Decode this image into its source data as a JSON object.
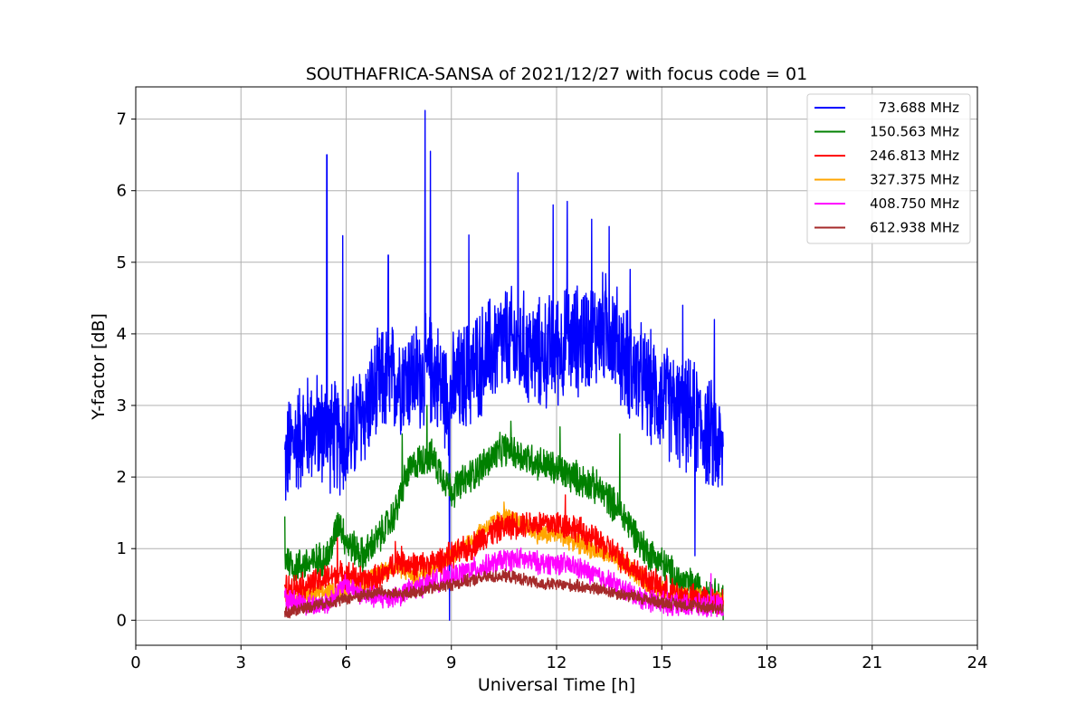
{
  "chart_data": {
    "type": "line",
    "title": "SOUTHAFRICA-SANSA of 2021/12/27 with focus code = 01",
    "xlabel": "Universal Time [h]",
    "ylabel": "Y-factor [dB]",
    "xlim": [
      0,
      24
    ],
    "ylim": [
      -0.35,
      7.45
    ],
    "xticks": [
      0,
      3,
      6,
      9,
      12,
      15,
      18,
      21,
      24
    ],
    "yticks": [
      0,
      1,
      2,
      3,
      4,
      5,
      6,
      7
    ],
    "grid": true,
    "legend_position": "upper right",
    "series": [
      {
        "name": "73.688 MHz",
        "color": "#0000ff",
        "noise": 0.9,
        "spikes": [
          [
            5.45,
            6.5
          ],
          [
            5.9,
            5.37
          ],
          [
            7.2,
            5.1
          ],
          [
            8.25,
            7.12
          ],
          [
            8.4,
            6.55
          ],
          [
            9.5,
            5.38
          ],
          [
            10.9,
            6.25
          ],
          [
            11.9,
            5.8
          ],
          [
            12.3,
            5.85
          ],
          [
            13.0,
            5.6
          ],
          [
            13.5,
            5.5
          ],
          [
            14.1,
            4.9
          ],
          [
            15.6,
            4.4
          ],
          [
            16.5,
            4.2
          ],
          [
            8.95,
            0.0
          ],
          [
            15.95,
            0.9
          ]
        ],
        "x": [
          4.25,
          4.5,
          5.0,
          5.5,
          6.0,
          6.5,
          7.0,
          7.5,
          8.0,
          8.5,
          8.9,
          9.2,
          9.6,
          10.0,
          10.5,
          11.0,
          11.5,
          12.0,
          12.5,
          13.0,
          13.5,
          14.0,
          14.5,
          15.0,
          15.5,
          16.0,
          16.5,
          16.75
        ],
        "y": [
          2.2,
          2.5,
          2.7,
          2.6,
          2.5,
          2.9,
          3.3,
          3.4,
          3.4,
          3.5,
          3.1,
          3.3,
          3.5,
          3.7,
          3.9,
          3.8,
          3.7,
          3.8,
          3.9,
          4.0,
          4.1,
          3.6,
          3.3,
          3.1,
          2.9,
          2.8,
          2.5,
          2.3
        ]
      },
      {
        "name": "150.563 MHz",
        "color": "#008000",
        "noise": 0.28,
        "spikes": [
          [
            4.25,
            1.45
          ],
          [
            7.6,
            2.6
          ],
          [
            8.3,
            3.0
          ],
          [
            10.7,
            2.78
          ],
          [
            12.1,
            2.7
          ],
          [
            13.8,
            2.6
          ],
          [
            16.75,
            0.0
          ]
        ],
        "x": [
          4.25,
          4.5,
          5.0,
          5.5,
          5.8,
          6.0,
          6.5,
          7.0,
          7.4,
          7.7,
          8.0,
          8.4,
          8.8,
          9.0,
          9.5,
          10.0,
          10.5,
          11.0,
          11.5,
          12.0,
          12.5,
          13.0,
          13.5,
          14.0,
          14.5,
          15.0,
          15.5,
          16.0,
          16.5,
          16.75
        ],
        "y": [
          0.9,
          0.75,
          0.8,
          0.9,
          1.4,
          1.1,
          0.9,
          1.2,
          1.5,
          2.0,
          2.2,
          2.3,
          2.0,
          1.8,
          2.0,
          2.2,
          2.4,
          2.3,
          2.2,
          2.1,
          2.0,
          1.9,
          1.7,
          1.4,
          1.0,
          0.8,
          0.55,
          0.45,
          0.35,
          0.3
        ]
      },
      {
        "name": "246.813 MHz",
        "color": "#ff0000",
        "noise": 0.22,
        "spikes": [
          [
            5.75,
            1.15
          ],
          [
            7.4,
            1.1
          ],
          [
            12.25,
            1.75
          ]
        ],
        "x": [
          4.25,
          5.0,
          5.5,
          6.0,
          6.5,
          7.0,
          7.5,
          8.0,
          8.5,
          9.0,
          9.5,
          10.0,
          10.5,
          11.0,
          11.5,
          12.0,
          12.5,
          13.0,
          13.5,
          14.0,
          14.5,
          15.0,
          15.5,
          16.0,
          16.5,
          16.75
        ],
        "y": [
          0.45,
          0.5,
          0.6,
          0.65,
          0.55,
          0.6,
          0.85,
          0.75,
          0.8,
          0.9,
          1.0,
          1.2,
          1.3,
          1.35,
          1.35,
          1.35,
          1.3,
          1.15,
          1.0,
          0.8,
          0.6,
          0.45,
          0.35,
          0.3,
          0.28,
          0.25
        ]
      },
      {
        "name": "327.375 MHz",
        "color": "#ffa500",
        "noise": 0.16,
        "spikes": [
          [
            10.5,
            1.65
          ]
        ],
        "x": [
          4.25,
          5.0,
          5.5,
          6.0,
          6.5,
          7.0,
          7.5,
          8.0,
          8.5,
          9.0,
          9.5,
          10.0,
          10.5,
          11.0,
          11.5,
          12.0,
          12.5,
          13.0,
          13.5,
          14.0,
          14.5,
          15.0,
          15.5,
          16.0,
          16.5,
          16.75
        ],
        "y": [
          0.3,
          0.35,
          0.4,
          0.45,
          0.5,
          0.7,
          0.75,
          0.6,
          0.75,
          0.9,
          1.1,
          1.3,
          1.45,
          1.35,
          1.2,
          1.2,
          1.1,
          1.0,
          0.9,
          0.75,
          0.55,
          0.4,
          0.35,
          0.3,
          0.28,
          0.25
        ]
      },
      {
        "name": "408.750 MHz",
        "color": "#ff00ff",
        "noise": 0.18,
        "spikes": [
          [
            16.4,
            0.65
          ]
        ],
        "x": [
          4.25,
          5.0,
          5.5,
          6.0,
          6.5,
          7.0,
          7.5,
          8.0,
          8.5,
          9.0,
          9.5,
          10.0,
          10.5,
          11.0,
          11.5,
          12.0,
          12.5,
          13.0,
          13.5,
          14.0,
          14.5,
          15.0,
          15.5,
          16.0,
          16.5,
          16.75
        ],
        "y": [
          0.3,
          0.2,
          0.25,
          0.5,
          0.35,
          0.3,
          0.35,
          0.45,
          0.55,
          0.6,
          0.7,
          0.75,
          0.85,
          0.85,
          0.8,
          0.8,
          0.75,
          0.65,
          0.55,
          0.4,
          0.3,
          0.25,
          0.2,
          0.2,
          0.2,
          0.2
        ]
      },
      {
        "name": "612.938 MHz",
        "color": "#a52a2a",
        "noise": 0.1,
        "spikes": [],
        "x": [
          4.25,
          5.0,
          5.5,
          6.0,
          6.5,
          7.0,
          7.5,
          8.0,
          8.5,
          9.0,
          9.5,
          10.0,
          10.5,
          11.0,
          11.5,
          12.0,
          12.5,
          13.0,
          13.5,
          14.0,
          14.5,
          15.0,
          15.5,
          16.0,
          16.5,
          16.75
        ],
        "y": [
          0.1,
          0.2,
          0.25,
          0.3,
          0.35,
          0.4,
          0.35,
          0.4,
          0.45,
          0.5,
          0.55,
          0.6,
          0.62,
          0.58,
          0.5,
          0.5,
          0.48,
          0.45,
          0.4,
          0.35,
          0.3,
          0.25,
          0.22,
          0.2,
          0.18,
          0.15
        ]
      }
    ]
  }
}
